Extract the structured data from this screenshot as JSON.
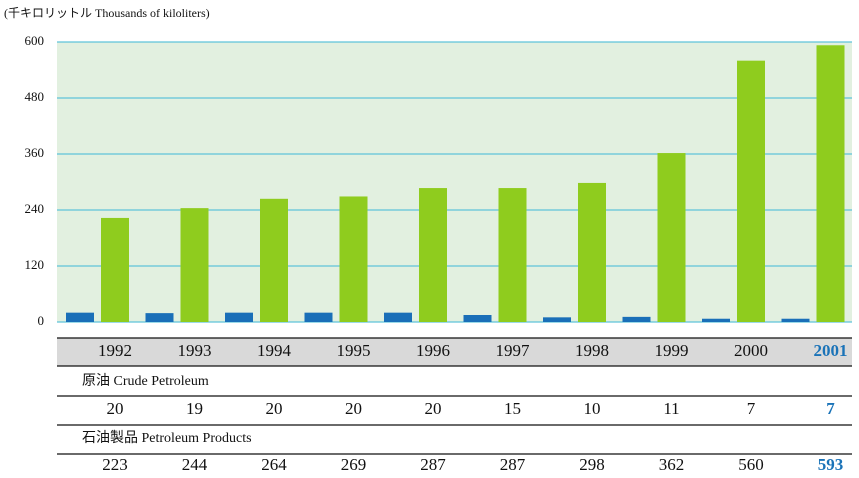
{
  "chart_data": {
    "type": "bar",
    "y_axis_label": "(千キロリットル Thousands of kiloliters)",
    "categories": [
      "1992",
      "1993",
      "1994",
      "1995",
      "1996",
      "1997",
      "1998",
      "1999",
      "2000",
      "2001"
    ],
    "series": [
      {
        "name": "原油 Crude Petroleum",
        "color": "#1a6fb8",
        "values": [
          20,
          19,
          20,
          20,
          20,
          15,
          10,
          11,
          7,
          7
        ]
      },
      {
        "name": "石油製品 Petroleum Products",
        "color": "#8fcc1e",
        "values": [
          223,
          244,
          264,
          269,
          287,
          287,
          298,
          362,
          560,
          593
        ]
      }
    ],
    "ylim": [
      0,
      600
    ],
    "yticks": [
      0,
      120,
      240,
      360,
      480,
      600
    ],
    "grid": true
  }
}
